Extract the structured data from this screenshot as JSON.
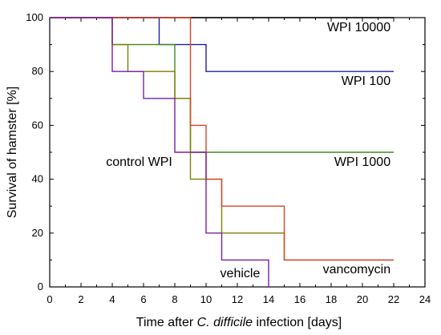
{
  "chart_data": {
    "type": "line",
    "title": "",
    "xlabel_parts": [
      {
        "text": "Time after ",
        "italic": false
      },
      {
        "text": "C. difficile",
        "italic": true
      },
      {
        "text": " infection [days]",
        "italic": false
      }
    ],
    "ylabel": "Survival of hamster [%]",
    "xlim": [
      0,
      24
    ],
    "ylim": [
      0,
      100
    ],
    "xticks": [
      0,
      2,
      4,
      6,
      8,
      10,
      12,
      14,
      16,
      18,
      20,
      22,
      24
    ],
    "yticks": [
      0,
      20,
      40,
      60,
      80,
      100
    ],
    "grid": false,
    "series": [
      {
        "name": "WPI 10000",
        "color": "#000000",
        "points": [
          [
            0,
            100
          ],
          [
            22,
            100
          ]
        ]
      },
      {
        "name": "WPI 100",
        "color": "#1f1fa8",
        "points": [
          [
            0,
            100
          ],
          [
            7,
            100
          ],
          [
            7,
            90
          ],
          [
            10,
            90
          ],
          [
            10,
            80
          ],
          [
            22,
            80
          ]
        ]
      },
      {
        "name": "WPI 1000",
        "color": "#3e8a1c",
        "points": [
          [
            0,
            100
          ],
          [
            4,
            100
          ],
          [
            4,
            90
          ],
          [
            8,
            90
          ],
          [
            8,
            70
          ],
          [
            9,
            70
          ],
          [
            9,
            50
          ],
          [
            22,
            50
          ]
        ]
      },
      {
        "name": "control WPI",
        "color": "#7f7f00",
        "points": [
          [
            0,
            100
          ],
          [
            4,
            100
          ],
          [
            4,
            90
          ],
          [
            5,
            90
          ],
          [
            5,
            80
          ],
          [
            8,
            80
          ],
          [
            8,
            70
          ],
          [
            9,
            70
          ],
          [
            9,
            40
          ],
          [
            11,
            40
          ],
          [
            11,
            20
          ],
          [
            15,
            20
          ],
          [
            15,
            10
          ],
          [
            22,
            10
          ]
        ]
      },
      {
        "name": "vancomycin",
        "color": "#d9432b",
        "points": [
          [
            0,
            100
          ],
          [
            9,
            100
          ],
          [
            9,
            60
          ],
          [
            10,
            60
          ],
          [
            10,
            40
          ],
          [
            11,
            40
          ],
          [
            11,
            30
          ],
          [
            15,
            30
          ],
          [
            15,
            10
          ],
          [
            22,
            10
          ]
        ]
      },
      {
        "name": "vehicle",
        "color": "#7b1fa2",
        "points": [
          [
            0,
            100
          ],
          [
            4,
            100
          ],
          [
            4,
            80
          ],
          [
            6,
            80
          ],
          [
            6,
            70
          ],
          [
            8,
            70
          ],
          [
            8,
            50
          ],
          [
            10,
            50
          ],
          [
            10,
            20
          ],
          [
            11,
            20
          ],
          [
            11,
            10
          ],
          [
            14,
            10
          ],
          [
            14,
            0
          ]
        ]
      }
    ],
    "annotations": [
      {
        "text": "WPI 10000",
        "x": 21.8,
        "y": 95,
        "anchor": "end"
      },
      {
        "text": "WPI 100",
        "x": 21.8,
        "y": 75,
        "anchor": "end"
      },
      {
        "text": "WPI 1000",
        "x": 21.8,
        "y": 45,
        "anchor": "end"
      },
      {
        "text": "control WPI",
        "x": 3.6,
        "y": 45,
        "anchor": "start"
      },
      {
        "text": "vancomycin",
        "x": 21.8,
        "y": 5,
        "anchor": "end"
      },
      {
        "text": "vehicle",
        "x": 10.9,
        "y": 3.5,
        "anchor": "start"
      }
    ]
  }
}
